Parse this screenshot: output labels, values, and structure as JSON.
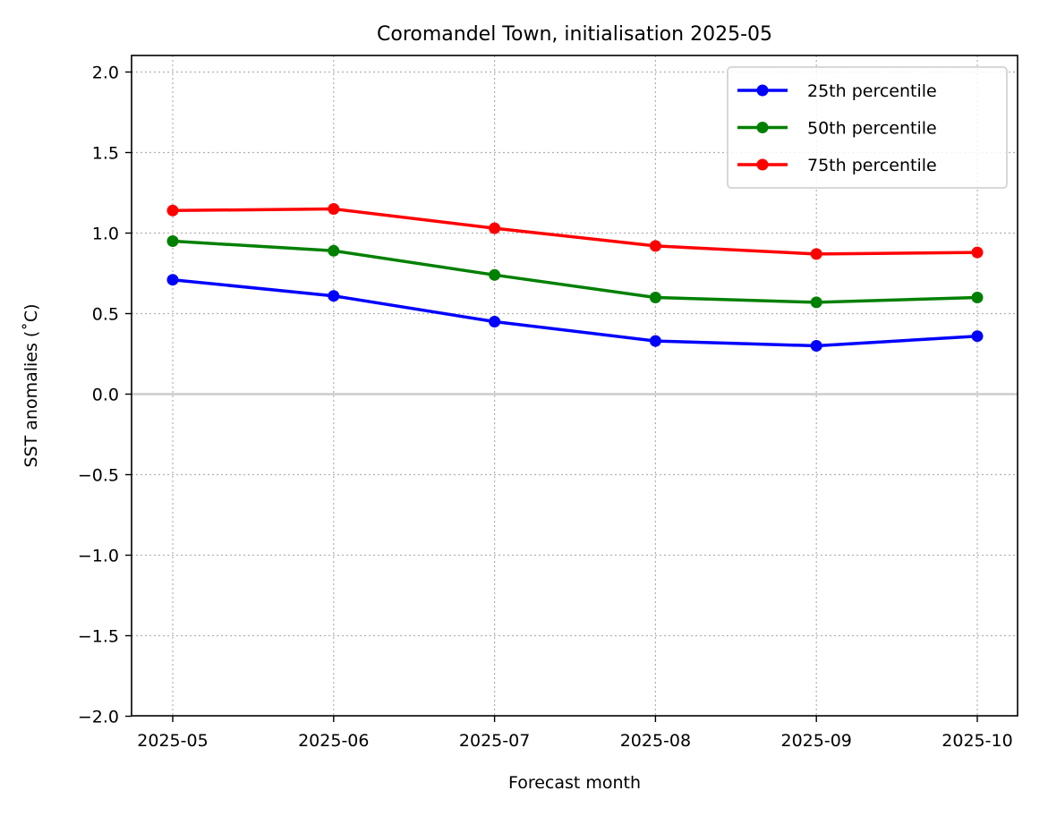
{
  "chart_data": {
    "type": "line",
    "title": "Coromandel Town, initialisation 2025-05",
    "xlabel": "Forecast month",
    "ylabel": "SST anomalies (˚C)",
    "categories": [
      "2025-05",
      "2025-06",
      "2025-07",
      "2025-08",
      "2025-09",
      "2025-10"
    ],
    "ylim": [
      -2.0,
      2.1
    ],
    "yticks": [
      "−2.0",
      "−1.5",
      "−1.0",
      "−0.5",
      "0.0",
      "0.5",
      "1.0",
      "1.5",
      "2.0"
    ],
    "ytick_values": [
      -2.0,
      -1.5,
      -1.0,
      -0.5,
      0.0,
      0.5,
      1.0,
      1.5,
      2.0
    ],
    "grid": true,
    "zero_line": true,
    "legend_position": "top-right",
    "series": [
      {
        "name": "25th percentile",
        "color": "#0000ff",
        "values": [
          0.71,
          0.61,
          0.45,
          0.33,
          0.3,
          0.36
        ]
      },
      {
        "name": "50th percentile",
        "color": "#008000",
        "values": [
          0.95,
          0.89,
          0.74,
          0.6,
          0.57,
          0.6
        ]
      },
      {
        "name": "75th percentile",
        "color": "#ff0000",
        "values": [
          1.14,
          1.15,
          1.03,
          0.92,
          0.87,
          0.88
        ]
      }
    ]
  }
}
